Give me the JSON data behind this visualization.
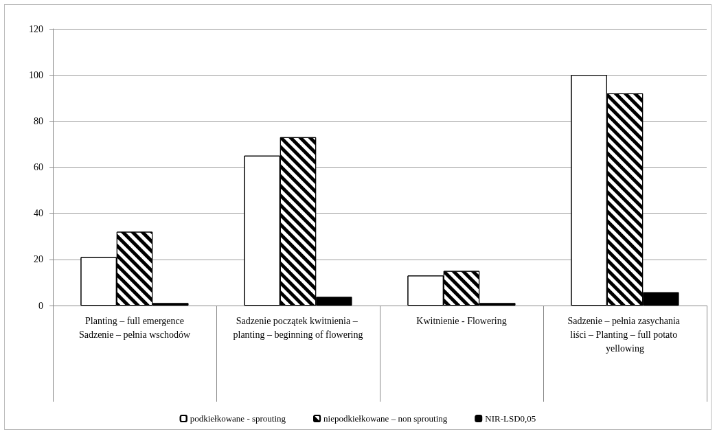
{
  "chart_data": {
    "type": "bar",
    "categories": [
      "Planting – full emergence\nSadzenie – pełnia wschodów",
      "Sadzenie początek kwitnienia – planting – beginning of flowering",
      "Kwitnienie - Flowering",
      "Sadzenie – pełnia zasychania liści – Planting – full potato yellowing"
    ],
    "series": [
      {
        "name": "podkiełkowane - sprouting",
        "color": "#ffffff",
        "values": [
          21,
          65,
          13,
          100
        ]
      },
      {
        "name": "niepodkiełkowane – non sprouting",
        "color": "#ffffff",
        "values": [
          32,
          73,
          15,
          92
        ]
      },
      {
        "name": "NIR-LSD0,05",
        "color": "#000000",
        "values": [
          1.1,
          3.8,
          1.1,
          5.8
        ]
      }
    ],
    "ylim": [
      0,
      120
    ],
    "yticks": [
      0,
      20,
      40,
      60,
      80,
      100,
      120
    ],
    "grid": "y",
    "legend": "bottom"
  }
}
